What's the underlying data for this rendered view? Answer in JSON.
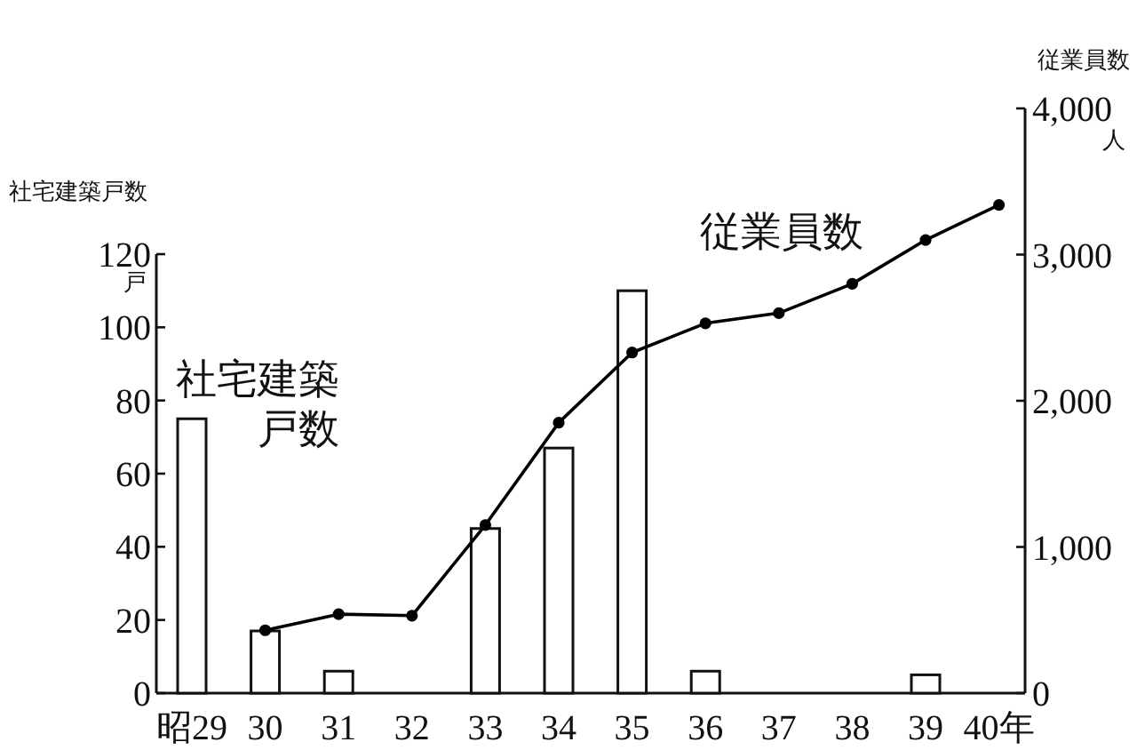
{
  "chart_data": {
    "type": "bar",
    "ylabel": "社宅建築戸数",
    "y2label": "従業員数",
    "categories": [
      "昭29",
      "30",
      "31",
      "32",
      "33",
      "34",
      "35",
      "36",
      "37",
      "38",
      "39",
      "40年"
    ],
    "series": [
      {
        "name": "社宅建築戸数",
        "color": "#ffffff",
        "values": [
          75,
          17,
          6,
          null,
          45,
          67,
          110,
          6,
          null,
          null,
          5,
          null
        ]
      },
      {
        "name": "従業員数",
        "type": "line",
        "axis": "y2",
        "color": "#000000",
        "marker": "circle",
        "values": [
          null,
          430,
          540,
          530,
          1150,
          1850,
          2330,
          2530,
          2600,
          2800,
          3100,
          3340
        ]
      }
    ],
    "ylim": [
      0,
      120
    ],
    "yticks": [
      0,
      20,
      40,
      60,
      80,
      100,
      120
    ],
    "y2lim": [
      0,
      4000
    ],
    "y2ticks": [
      0,
      {
        "value": 1000,
        "label": "1,000"
      },
      {
        "value": 2000,
        "label": "2,000"
      },
      {
        "value": 3000,
        "label": "3,000"
      },
      {
        "value": 4000,
        "label": "4,000"
      }
    ],
    "annotations": [
      "戸",
      "人"
    ],
    "grid": false
  }
}
